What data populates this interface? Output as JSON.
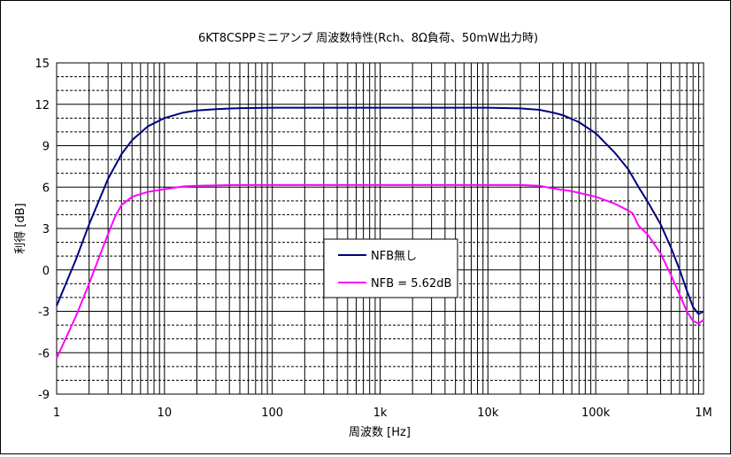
{
  "chart_data": {
    "type": "line",
    "title": "6KT8CSPPミニアンプ 周波数特性(Rch、8Ω負荷、50mW出力時)",
    "xlabel": "周波数 [Hz]",
    "ylabel": "利得 [dB]",
    "x_scale": "log",
    "xlim": [
      1,
      1000000
    ],
    "ylim": [
      -9,
      15
    ],
    "x_tick_labels": [
      "1",
      "10",
      "100",
      "1k",
      "10k",
      "100k",
      "1M"
    ],
    "y_ticks": [
      -9,
      -6,
      -3,
      0,
      3,
      6,
      9,
      12,
      15
    ],
    "grid": true,
    "legend_position": "center",
    "series": [
      {
        "name": "NFB無し",
        "color": "#000080",
        "points": [
          [
            1,
            -2.6
          ],
          [
            1.5,
            0.7
          ],
          [
            2,
            3.3
          ],
          [
            3,
            6.6
          ],
          [
            4,
            8.4
          ],
          [
            5,
            9.4
          ],
          [
            7,
            10.4
          ],
          [
            10,
            11.0
          ],
          [
            15,
            11.4
          ],
          [
            20,
            11.55
          ],
          [
            30,
            11.65
          ],
          [
            50,
            11.72
          ],
          [
            100,
            11.75
          ],
          [
            1000,
            11.75
          ],
          [
            10000,
            11.75
          ],
          [
            20000,
            11.7
          ],
          [
            30000,
            11.6
          ],
          [
            40000,
            11.4
          ],
          [
            50000,
            11.2
          ],
          [
            70000,
            10.7
          ],
          [
            100000,
            9.9
          ],
          [
            150000,
            8.5
          ],
          [
            200000,
            7.3
          ],
          [
            250000,
            6.0
          ],
          [
            300000,
            5.0
          ],
          [
            400000,
            3.3
          ],
          [
            500000,
            1.6
          ],
          [
            600000,
            0.0
          ],
          [
            700000,
            -1.5
          ],
          [
            800000,
            -2.7
          ],
          [
            900000,
            -3.2
          ],
          [
            1000000,
            -3.0
          ]
        ]
      },
      {
        "name": "NFB = 5.62dB",
        "color": "#ff00ff",
        "points": [
          [
            1,
            -6.4
          ],
          [
            1.5,
            -3.4
          ],
          [
            2,
            -1.0
          ],
          [
            2.5,
            1.0
          ],
          [
            3,
            2.6
          ],
          [
            3.5,
            3.9
          ],
          [
            4,
            4.7
          ],
          [
            5,
            5.3
          ],
          [
            7,
            5.65
          ],
          [
            10,
            5.85
          ],
          [
            15,
            6.05
          ],
          [
            20,
            6.1
          ],
          [
            50,
            6.15
          ],
          [
            1000,
            6.15
          ],
          [
            10000,
            6.15
          ],
          [
            20000,
            6.15
          ],
          [
            30000,
            6.1
          ],
          [
            40000,
            5.9
          ],
          [
            60000,
            5.7
          ],
          [
            100000,
            5.3
          ],
          [
            150000,
            4.8
          ],
          [
            200000,
            4.3
          ],
          [
            220000,
            4.1
          ],
          [
            250000,
            3.2
          ],
          [
            300000,
            2.6
          ],
          [
            400000,
            1.2
          ],
          [
            500000,
            -0.4
          ],
          [
            600000,
            -1.8
          ],
          [
            700000,
            -3.0
          ],
          [
            800000,
            -3.7
          ],
          [
            900000,
            -3.9
          ],
          [
            1000000,
            -3.6
          ]
        ]
      }
    ]
  }
}
